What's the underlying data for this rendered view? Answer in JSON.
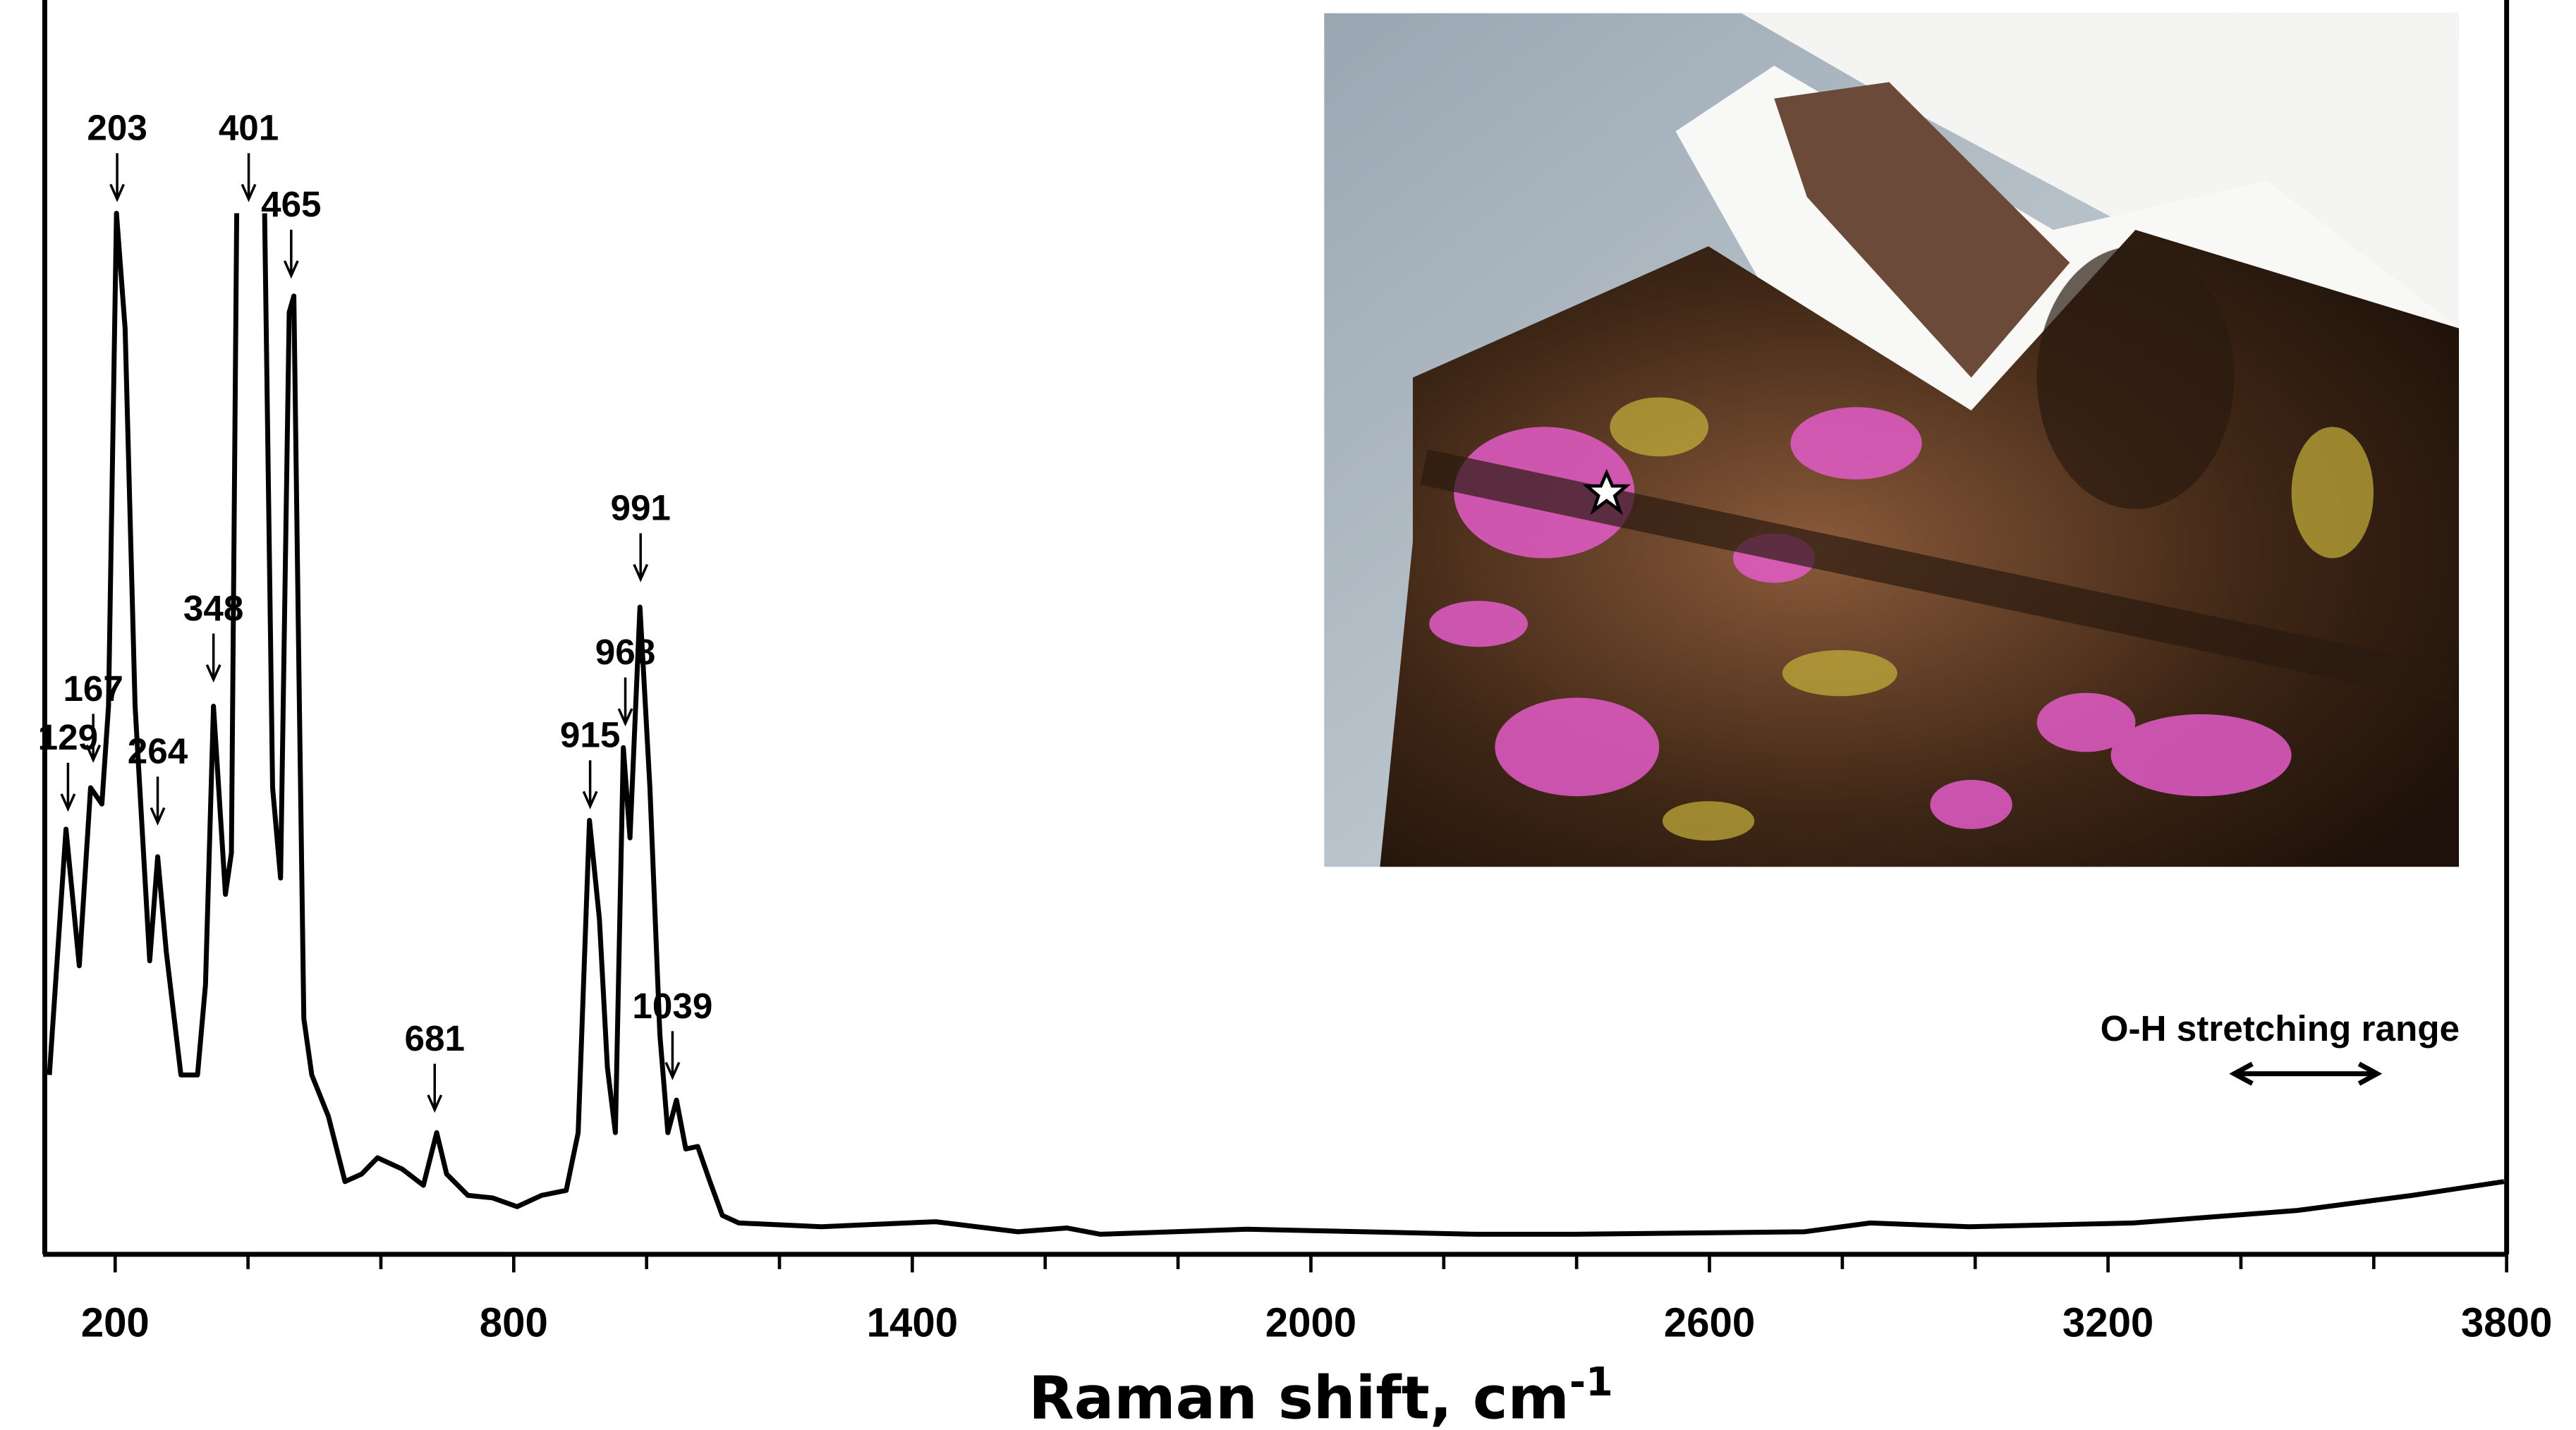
{
  "chart_data": {
    "type": "line",
    "x_label": "Raman shift, cm",
    "x_label_superscript": "-1",
    "xlim": [
      94,
      3800
    ],
    "ylim": [
      0,
      100
    ],
    "xticks": [
      200,
      800,
      1400,
      2000,
      2600,
      3200,
      3800
    ],
    "xminor_ticks": [
      400,
      600,
      1000,
      1200,
      1600,
      1800,
      2200,
      2400,
      2800,
      3000,
      3400,
      3600
    ],
    "color": "#000000",
    "x": [
      101,
      126,
      146,
      163,
      180,
      190,
      202,
      215,
      230,
      252,
      264,
      277,
      299,
      324,
      336,
      348,
      366,
      375,
      383,
      401,
      425,
      437,
      449,
      462,
      469,
      477,
      484,
      496,
      521,
      546,
      571,
      595,
      632,
      664,
      684,
      699,
      731,
      768,
      805,
      842,
      879,
      897,
      914,
      929,
      941,
      953,
      965,
      975,
      990,
      1005,
      1020,
      1032,
      1045,
      1059,
      1077,
      1094,
      1114,
      1139,
      1263,
      1435,
      1559,
      1633,
      1683,
      1904,
      2250,
      2398,
      2743,
      2842,
      2991,
      3238,
      3485,
      3658,
      3796
    ],
    "values": [
      14.3,
      33.9,
      23.0,
      37.2,
      35.9,
      43.7,
      83.0,
      73.8,
      43.7,
      23.4,
      31.7,
      24.1,
      14.3,
      14.3,
      21.5,
      43.7,
      28.7,
      32.0,
      83.0,
      null,
      83.0,
      37.2,
      30.0,
      75.1,
      76.4,
      45.0,
      18.8,
      14.3,
      11.0,
      5.8,
      6.4,
      7.7,
      6.8,
      5.5,
      9.7,
      6.4,
      4.7,
      4.5,
      3.8,
      4.7,
      5.1,
      9.7,
      34.6,
      26.7,
      14.9,
      9.7,
      40.4,
      33.2,
      51.6,
      37.2,
      17.5,
      9.7,
      12.3,
      8.4,
      8.6,
      6.0,
      3.1,
      2.5,
      2.2,
      2.6,
      1.8,
      2.1,
      1.6,
      2.0,
      1.6,
      1.6,
      1.8,
      2.5,
      2.2,
      2.5,
      3.5,
      4.7,
      5.8
    ],
    "peaks": [
      {
        "x": 129,
        "y": 35.0
      },
      {
        "x": 167,
        "y": 38.9
      },
      {
        "x": 203,
        "y": 83.6
      },
      {
        "x": 264,
        "y": 33.9
      },
      {
        "x": 348,
        "y": 45.3
      },
      {
        "x": 401,
        "y": 83.6
      },
      {
        "x": 465,
        "y": 77.5
      },
      {
        "x": 681,
        "y": 11.0
      },
      {
        "x": 915,
        "y": 35.2
      },
      {
        "x": 968,
        "y": 41.8
      },
      {
        "x": 991,
        "y": 53.3
      },
      {
        "x": 1039,
        "y": 13.6
      }
    ],
    "range_annotation": {
      "text": "O-H stretching range",
      "xrange": [
        3390,
        3605
      ]
    }
  }
}
